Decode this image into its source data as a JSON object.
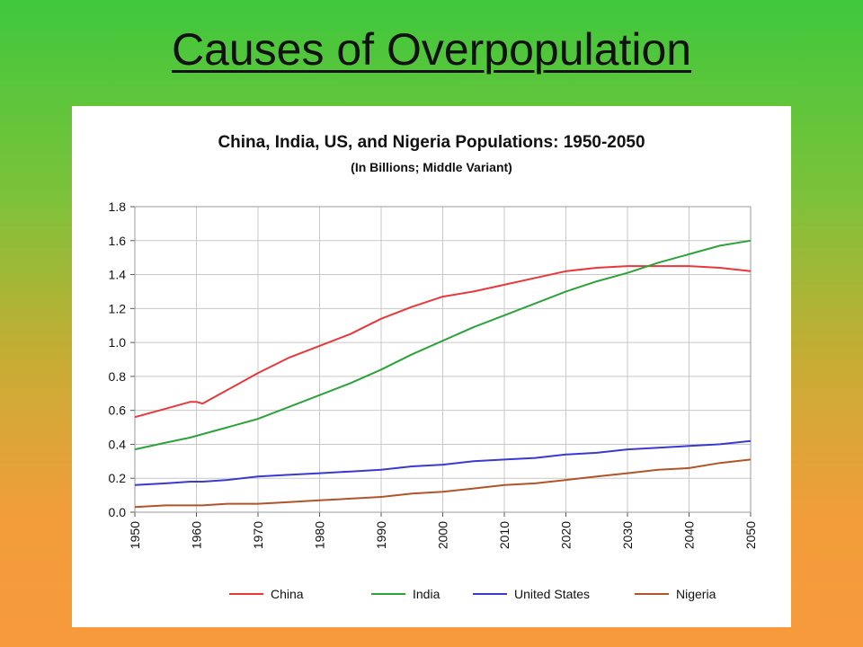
{
  "slide": {
    "title": "Causes of Overpopulation"
  },
  "colors": {
    "China": "#e8383c",
    "India": "#2ea23a",
    "United States": "#3a3ad0",
    "Nigeria": "#b0552a",
    "grid": "#c8c8c8",
    "axis": "#555555"
  },
  "chart_data": {
    "type": "line",
    "title": "China, India, US, and Nigeria Populations:  1950-2050",
    "subtitle": "(In Billions; Middle Variant)",
    "xlabel": "",
    "ylabel": "",
    "xlim": [
      1950,
      2050
    ],
    "ylim": [
      0.0,
      1.8
    ],
    "x_ticks": [
      "1950",
      "1960",
      "1970",
      "1980",
      "1990",
      "2000",
      "2010",
      "2020",
      "2030",
      "2040",
      "2050"
    ],
    "y_ticks": [
      "0.0",
      "0.2",
      "0.4",
      "0.6",
      "0.8",
      "1.0",
      "1.2",
      "1.4",
      "1.6",
      "1.8"
    ],
    "grid": true,
    "legend_position": "bottom",
    "x": [
      1950,
      1955,
      1959,
      1960,
      1961,
      1965,
      1970,
      1975,
      1980,
      1985,
      1990,
      1995,
      2000,
      2005,
      2010,
      2015,
      2020,
      2025,
      2030,
      2035,
      2040,
      2045,
      2050
    ],
    "series": [
      {
        "name": "China",
        "values": [
          0.56,
          0.61,
          0.65,
          0.65,
          0.64,
          0.72,
          0.82,
          0.91,
          0.98,
          1.05,
          1.14,
          1.21,
          1.27,
          1.3,
          1.34,
          1.38,
          1.42,
          1.44,
          1.45,
          1.45,
          1.45,
          1.44,
          1.42
        ]
      },
      {
        "name": "India",
        "values": [
          0.37,
          0.41,
          0.44,
          0.45,
          0.46,
          0.5,
          0.55,
          0.62,
          0.69,
          0.76,
          0.84,
          0.93,
          1.01,
          1.09,
          1.16,
          1.23,
          1.3,
          1.36,
          1.41,
          1.47,
          1.52,
          1.57,
          1.6
        ]
      },
      {
        "name": "United States",
        "values": [
          0.16,
          0.17,
          0.18,
          0.18,
          0.18,
          0.19,
          0.21,
          0.22,
          0.23,
          0.24,
          0.25,
          0.27,
          0.28,
          0.3,
          0.31,
          0.32,
          0.34,
          0.35,
          0.37,
          0.38,
          0.39,
          0.4,
          0.42
        ]
      },
      {
        "name": "Nigeria",
        "values": [
          0.03,
          0.04,
          0.04,
          0.04,
          0.04,
          0.05,
          0.05,
          0.06,
          0.07,
          0.08,
          0.09,
          0.11,
          0.12,
          0.14,
          0.16,
          0.17,
          0.19,
          0.21,
          0.23,
          0.25,
          0.26,
          0.29,
          0.31
        ]
      }
    ]
  }
}
